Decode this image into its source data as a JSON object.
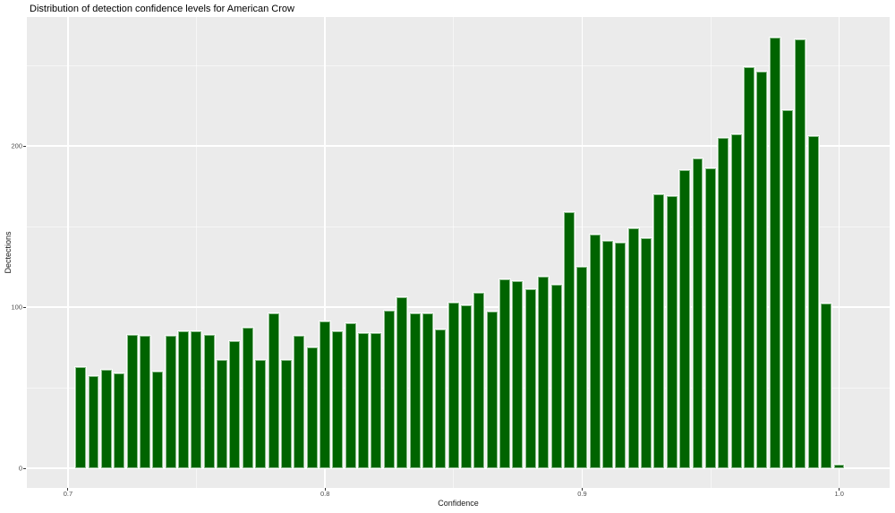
{
  "chart_data": {
    "type": "bar",
    "subtype": "histogram",
    "title": "Distribution of detection confidence levels for American Crow",
    "xlabel": "Confidence",
    "ylabel": "Dectections",
    "bin_start": 0.7025,
    "bin_width": 0.005,
    "values": [
      63,
      57,
      61,
      59,
      83,
      82,
      60,
      82,
      85,
      85,
      83,
      67,
      79,
      87,
      67,
      96,
      67,
      82,
      75,
      91,
      85,
      90,
      84,
      84,
      98,
      106,
      96,
      96,
      86,
      103,
      101,
      109,
      97,
      117,
      116,
      111,
      119,
      114,
      159,
      125,
      145,
      141,
      140,
      149,
      143,
      170,
      169,
      185,
      192,
      186,
      205,
      207,
      249,
      246,
      267,
      222,
      266,
      206,
      102,
      2
    ],
    "x_ticks": [
      "0.7",
      "0.8",
      "0.9",
      "1.0"
    ],
    "x_tick_values": [
      0.7,
      0.8,
      0.9,
      1.0
    ],
    "y_ticks": [
      "0",
      "100",
      "200"
    ],
    "y_tick_values": [
      0,
      100,
      200
    ],
    "x_minor": [
      0.75,
      0.85,
      0.95
    ],
    "y_minor": [
      50,
      150,
      250
    ],
    "xlim": [
      0.684,
      1.0196
    ],
    "ylim": [
      -12.2,
      280.0
    ],
    "bar_fill": "#006400",
    "bar_edge": "#8fbf8f",
    "panel_bg": "#ebebeb",
    "grid_color": "#ffffff",
    "grid": "on",
    "legend_position": "none"
  }
}
